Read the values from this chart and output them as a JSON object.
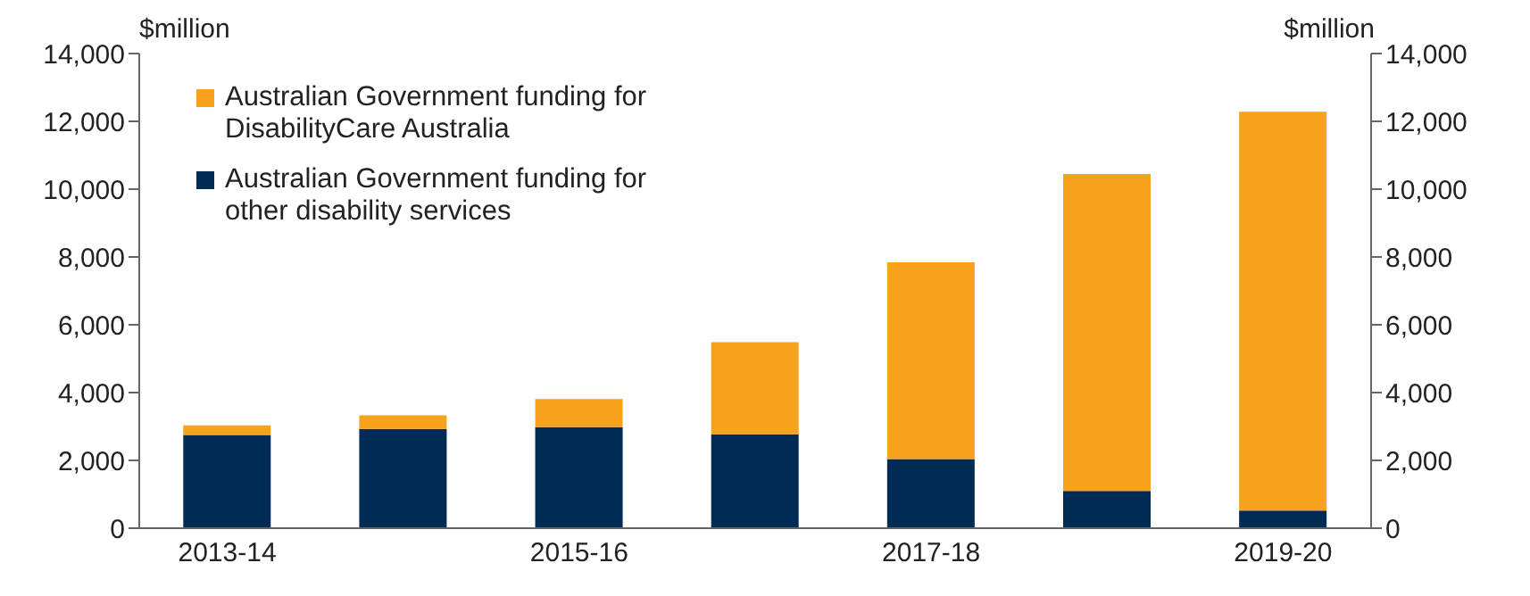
{
  "chart_data": {
    "type": "bar",
    "stacked": true,
    "ylabel": "$million",
    "y2label": "$million",
    "categories": [
      "2013-14",
      null,
      "2015-16",
      null,
      "2017-18",
      null,
      "2019-20"
    ],
    "series": [
      {
        "name": "Australian Government funding for other disability services",
        "color": "#002b55",
        "values": [
          2750,
          2930,
          2980,
          2770,
          2040,
          1100,
          520
        ]
      },
      {
        "name": "Australian Government funding for DisabilityCare Australia",
        "color": "#f6a21d",
        "values": [
          280,
          400,
          830,
          2720,
          5800,
          9350,
          11760
        ]
      }
    ],
    "ylim": [
      0,
      14000
    ],
    "yticks": [
      0,
      {
        "value": 2000,
        "label": "2,000"
      },
      {
        "value": 4000,
        "label": "4,000"
      },
      {
        "value": 6000,
        "label": "6,000"
      },
      {
        "value": 8000,
        "label": "8,000"
      },
      {
        "value": 10000,
        "label": "10,000"
      },
      {
        "value": 12000,
        "label": "12,000"
      },
      {
        "value": 14000,
        "label": "14,000"
      }
    ],
    "y2lim": [
      0,
      14000
    ],
    "y2ticks": [
      0,
      {
        "value": 2000,
        "label": "2,000"
      },
      {
        "value": 4000,
        "label": "4,000"
      },
      {
        "value": 6000,
        "label": "6,000"
      },
      {
        "value": 8000,
        "label": "8,000"
      },
      {
        "value": 10000,
        "label": "10,000"
      },
      {
        "value": 12000,
        "label": "12,000"
      },
      {
        "value": 14000,
        "label": "14,000"
      }
    ],
    "legend": "top left"
  }
}
